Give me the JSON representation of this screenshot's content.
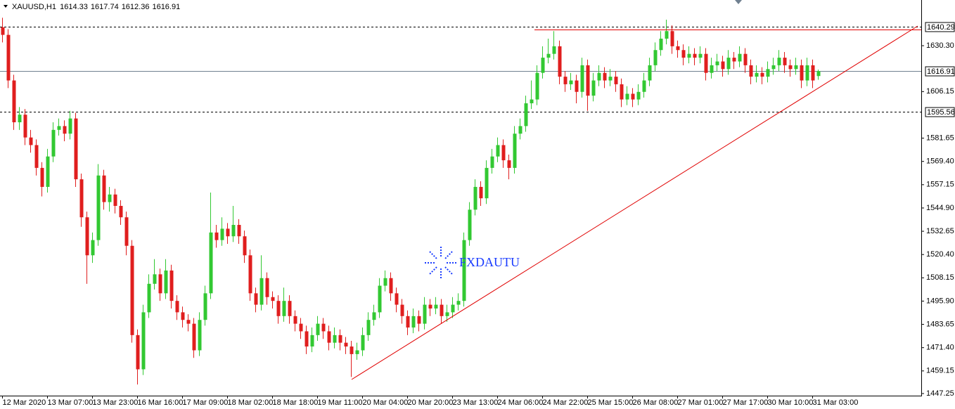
{
  "chart_data": {
    "type": "candlestick",
    "symbol": "XAUUSD,H1",
    "watermark": "FXDAUTU",
    "up_color": "#32c832",
    "down_color": "#e01e1e",
    "ylim": [
      1446.14,
      1654.35
    ],
    "yticks": [
      {
        "value": 1630.3,
        "label": "1630.30"
      },
      1606.15,
      1581.65,
      {
        "value": 1569.4,
        "label": "1569.40"
      },
      1557.15,
      {
        "value": 1544.9,
        "label": "1544.90"
      },
      1532.65,
      {
        "value": 1520.4,
        "label": "1520.40"
      },
      1508.15,
      {
        "value": 1495.9,
        "label": "1495.90"
      },
      1483.65,
      {
        "value": 1471.4,
        "label": "1471.40"
      },
      1459.15,
      1447.25
    ],
    "levels": [
      {
        "value": 1640.29,
        "style": "dashed"
      },
      {
        "value": 1616.91,
        "style": "solid"
      },
      {
        "value": 1595.56,
        "style": "dashed"
      }
    ],
    "categories": [
      "12 Mar 2020",
      null,
      null,
      null,
      null,
      null,
      null,
      null,
      "13 Mar 07:00",
      null,
      null,
      null,
      null,
      null,
      null,
      null,
      "13 Mar 23:00",
      null,
      null,
      null,
      null,
      null,
      null,
      null,
      "16 Mar 16:00",
      null,
      null,
      null,
      null,
      null,
      null,
      null,
      "17 Mar 09:00",
      null,
      null,
      null,
      null,
      null,
      null,
      null,
      "18 Mar 02:00",
      null,
      null,
      null,
      null,
      null,
      null,
      null,
      "18 Mar 18:00",
      null,
      null,
      null,
      null,
      null,
      null,
      null,
      "19 Mar 11:00",
      null,
      null,
      null,
      null,
      null,
      null,
      null,
      "20 Mar 04:00",
      null,
      null,
      null,
      null,
      null,
      null,
      null,
      "20 Mar 20:00",
      null,
      null,
      null,
      null,
      null,
      null,
      null,
      "23 Mar 13:00",
      null,
      null,
      null,
      null,
      null,
      null,
      null,
      "24 Mar 06:00",
      null,
      null,
      null,
      null,
      null,
      null,
      null,
      "24 Mar 22:00",
      null,
      null,
      null,
      null,
      null,
      null,
      null,
      "25 Mar 15:00",
      null,
      null,
      null,
      null,
      null,
      null,
      null,
      "26 Mar 08:00",
      null,
      null,
      null,
      null,
      null,
      null,
      null,
      "27 Mar 01:00",
      null,
      null,
      null,
      null,
      null,
      null,
      null,
      "27 Mar 17:00",
      null,
      null,
      null,
      null,
      null,
      null,
      null,
      "30 Mar 10:00",
      null,
      null,
      null,
      null,
      null,
      null,
      null,
      "31 Mar 03:00",
      null
    ],
    "open": [
      1640,
      1636,
      1612,
      1590,
      1594,
      1582,
      1578,
      1566,
      1556,
      1572,
      1586,
      1588,
      1584,
      1592,
      1560,
      1540,
      1520,
      1528,
      1562,
      1548,
      1552,
      1546,
      1540,
      1525,
      1478,
      1460,
      1490,
      1505,
      1510,
      1500,
      1512,
      1496,
      1490,
      1486,
      1484,
      1470,
      1486,
      1500,
      1532,
      1528,
      1534,
      1530,
      1536,
      1530,
      1520,
      1500,
      1494,
      1508,
      1498,
      1496,
      1488,
      1496,
      1488,
      1484,
      1480,
      1472,
      1478,
      1484,
      1480,
      1474,
      1478,
      1474,
      1472,
      1468,
      1470,
      1478,
      1486,
      1490,
      1504,
      1508,
      1500,
      1494,
      1488,
      1482,
      1488,
      1484,
      1494,
      1492,
      1494,
      1488,
      1490,
      1494,
      1496,
      1528,
      1544,
      1556,
      1550,
      1566,
      1572,
      1578,
      1570,
      1566,
      1584,
      1588,
      1600,
      1602,
      1616,
      1624,
      1626,
      1630,
      1614,
      1610,
      1612,
      1606,
      1620,
      1604,
      1612,
      1616,
      1612,
      1614,
      1610,
      1602,
      1605,
      1602,
      1606,
      1612,
      1620,
      1628,
      1634,
      1638,
      1630,
      1628,
      1624,
      1626,
      1624,
      1626,
      1616,
      1620,
      1622,
      1618,
      1624,
      1622,
      1626,
      1620,
      1614,
      1616,
      1614,
      1618,
      1620,
      1624,
      1620,
      1618,
      1620,
      1612,
      1620,
      1614.33
    ],
    "high": [
      1645,
      1639,
      1615,
      1598,
      1597,
      1586,
      1581,
      1569,
      1576,
      1590,
      1592,
      1591,
      1596,
      1595,
      1563,
      1543,
      1532,
      1568,
      1565,
      1556,
      1555,
      1549,
      1543,
      1528,
      1481,
      1494,
      1510,
      1518,
      1513,
      1518,
      1515,
      1499,
      1493,
      1489,
      1487,
      1490,
      1504,
      1553,
      1536,
      1540,
      1537,
      1546,
      1539,
      1533,
      1523,
      1503,
      1520,
      1511,
      1501,
      1499,
      1503,
      1499,
      1491,
      1487,
      1483,
      1482,
      1488,
      1487,
      1483,
      1482,
      1481,
      1477,
      1475,
      1474,
      1482,
      1490,
      1494,
      1508,
      1512,
      1511,
      1503,
      1497,
      1491,
      1492,
      1491,
      1498,
      1497,
      1498,
      1497,
      1494,
      1498,
      1500,
      1532,
      1548,
      1560,
      1559,
      1570,
      1576,
      1582,
      1581,
      1573,
      1588,
      1592,
      1604,
      1612,
      1620,
      1630,
      1634,
      1638,
      1633,
      1617,
      1616,
      1615,
      1624,
      1623,
      1616,
      1620,
      1619,
      1618,
      1617,
      1613,
      1609,
      1608,
      1610,
      1616,
      1624,
      1632,
      1638,
      1644,
      1641,
      1633,
      1631,
      1630,
      1629,
      1630,
      1629,
      1624,
      1626,
      1625,
      1628,
      1627,
      1630,
      1629,
      1623,
      1620,
      1619,
      1622,
      1624,
      1628,
      1627,
      1623,
      1624,
      1623,
      1624,
      1623,
      1617.74
    ],
    "low": [
      1632,
      1608,
      1586,
      1586,
      1578,
      1574,
      1562,
      1551,
      1553,
      1569,
      1583,
      1580,
      1581,
      1556,
      1535,
      1505,
      1516,
      1525,
      1544,
      1543,
      1542,
      1536,
      1520,
      1474,
      1452,
      1457,
      1487,
      1502,
      1496,
      1497,
      1492,
      1486,
      1482,
      1480,
      1466,
      1467,
      1483,
      1497,
      1524,
      1525,
      1526,
      1527,
      1526,
      1516,
      1496,
      1490,
      1491,
      1494,
      1492,
      1484,
      1485,
      1484,
      1480,
      1476,
      1468,
      1469,
      1475,
      1476,
      1470,
      1471,
      1470,
      1468,
      1456,
      1465,
      1467,
      1475,
      1483,
      1487,
      1501,
      1496,
      1490,
      1484,
      1478,
      1479,
      1480,
      1481,
      1488,
      1489,
      1484,
      1485,
      1487,
      1491,
      1493,
      1525,
      1541,
      1546,
      1547,
      1563,
      1569,
      1566,
      1560,
      1563,
      1581,
      1585,
      1597,
      1599,
      1613,
      1621,
      1623,
      1610,
      1606,
      1607,
      1600,
      1603,
      1596,
      1601,
      1609,
      1608,
      1609,
      1606,
      1598,
      1599,
      1598,
      1599,
      1603,
      1609,
      1617,
      1625,
      1631,
      1626,
      1624,
      1620,
      1621,
      1620,
      1621,
      1612,
      1613,
      1617,
      1614,
      1615,
      1618,
      1619,
      1616,
      1610,
      1611,
      1610,
      1611,
      1615,
      1617,
      1616,
      1614,
      1615,
      1608,
      1609,
      1608,
      1612.36
    ],
    "close": [
      1636,
      1612,
      1590,
      1594,
      1582,
      1578,
      1566,
      1556,
      1572,
      1586,
      1588,
      1584,
      1592,
      1560,
      1540,
      1520,
      1528,
      1562,
      1548,
      1552,
      1546,
      1540,
      1525,
      1478,
      1460,
      1490,
      1505,
      1510,
      1500,
      1512,
      1496,
      1490,
      1486,
      1484,
      1470,
      1486,
      1500,
      1532,
      1528,
      1534,
      1530,
      1536,
      1530,
      1520,
      1500,
      1494,
      1508,
      1498,
      1496,
      1488,
      1496,
      1488,
      1484,
      1480,
      1472,
      1478,
      1484,
      1480,
      1474,
      1478,
      1474,
      1472,
      1468,
      1470,
      1478,
      1486,
      1490,
      1504,
      1508,
      1500,
      1494,
      1488,
      1482,
      1488,
      1484,
      1494,
      1492,
      1494,
      1488,
      1490,
      1494,
      1496,
      1528,
      1544,
      1556,
      1550,
      1566,
      1572,
      1578,
      1570,
      1566,
      1584,
      1588,
      1600,
      1602,
      1616,
      1624,
      1626,
      1630,
      1614,
      1610,
      1612,
      1606,
      1620,
      1604,
      1612,
      1616,
      1612,
      1614,
      1610,
      1602,
      1605,
      1602,
      1606,
      1612,
      1620,
      1628,
      1634,
      1638,
      1630,
      1628,
      1624,
      1626,
      1624,
      1626,
      1616,
      1620,
      1622,
      1618,
      1624,
      1622,
      1626,
      1620,
      1614,
      1616,
      1614,
      1618,
      1620,
      1624,
      1620,
      1618,
      1620,
      1612,
      1620,
      1612,
      1616.91
    ]
  }
}
